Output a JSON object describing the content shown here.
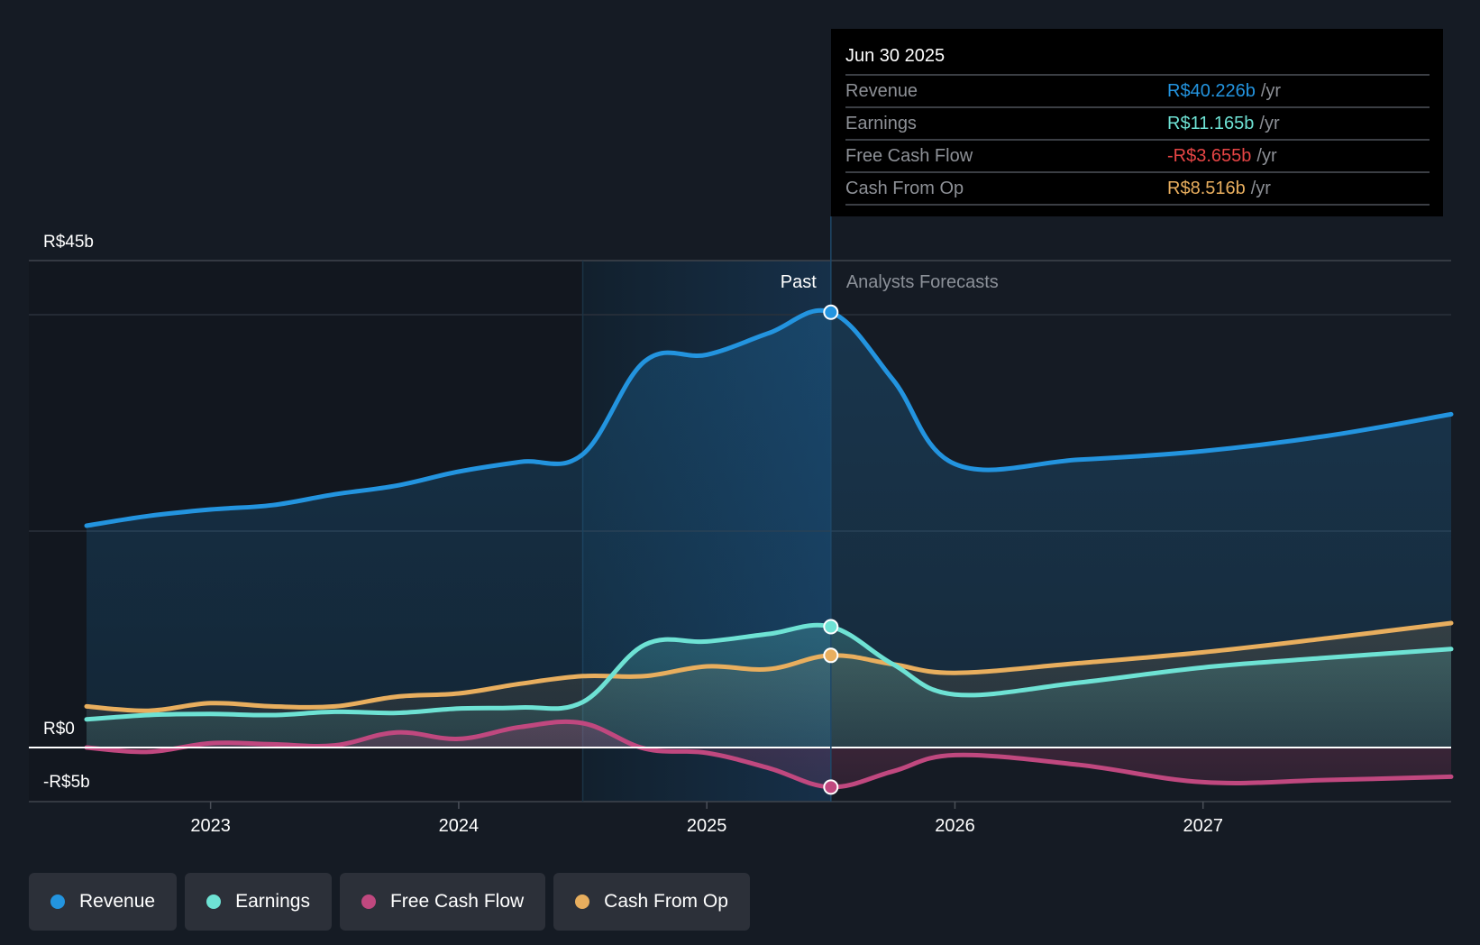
{
  "chart_data": {
    "type": "area",
    "title": "",
    "xlabel": "",
    "ylabel": "",
    "currency_prefix": "R$",
    "ylim": [
      -5,
      45
    ],
    "xlim": [
      2022.5,
      2028.0
    ],
    "y_ticks": [
      {
        "value": 45,
        "label": "R$45b"
      },
      {
        "value": 0,
        "label": "R$0"
      },
      {
        "value": -5,
        "label": "-R$5b"
      }
    ],
    "y_gridlines": [
      45,
      40,
      20,
      0,
      -5
    ],
    "x_ticks": [
      {
        "value": 2023,
        "label": "2023"
      },
      {
        "value": 2024,
        "label": "2024"
      },
      {
        "value": 2025,
        "label": "2025"
      },
      {
        "value": 2026,
        "label": "2026"
      },
      {
        "value": 2027,
        "label": "2027"
      }
    ],
    "past_region": {
      "start": 2022.5,
      "highlight_start": 2024.5,
      "end": 2025.5,
      "label": "Past"
    },
    "forecast_region": {
      "start": 2025.5,
      "label": "Analysts Forecasts"
    },
    "legend_position": "bottom-left",
    "series": [
      {
        "name": "Revenue",
        "color": "#2394df",
        "x": [
          2022.5,
          2022.75,
          2023.0,
          2023.25,
          2023.5,
          2023.75,
          2024.0,
          2024.25,
          2024.5,
          2024.75,
          2025.0,
          2025.25,
          2025.5,
          2025.75,
          2026.0,
          2026.5,
          2027.0,
          2027.5,
          2028.0
        ],
        "values": [
          20.5,
          21.4,
          22.0,
          22.4,
          23.4,
          24.2,
          25.5,
          26.4,
          27.1,
          35.7,
          36.3,
          38.3,
          40.226,
          34.0,
          26.2,
          26.6,
          27.4,
          28.8,
          30.8
        ]
      },
      {
        "name": "Earnings",
        "color": "#6ee2d4",
        "x": [
          2022.5,
          2022.75,
          2023.0,
          2023.25,
          2023.5,
          2023.75,
          2024.0,
          2024.25,
          2024.5,
          2024.75,
          2025.0,
          2025.25,
          2025.5,
          2025.75,
          2026.0,
          2026.5,
          2027.0,
          2027.5,
          2028.0
        ],
        "values": [
          2.6,
          3.0,
          3.1,
          3.0,
          3.3,
          3.2,
          3.6,
          3.7,
          4.2,
          9.5,
          9.8,
          10.5,
          11.165,
          7.7,
          4.9,
          6.0,
          7.4,
          8.3,
          9.1
        ]
      },
      {
        "name": "Free Cash Flow",
        "color": "#c0487f",
        "x": [
          2022.5,
          2022.75,
          2023.0,
          2023.25,
          2023.5,
          2023.75,
          2024.0,
          2024.25,
          2024.5,
          2024.75,
          2025.0,
          2025.25,
          2025.5,
          2025.75,
          2026.0,
          2026.5,
          2027.0,
          2027.5,
          2028.0
        ],
        "values": [
          0.0,
          -0.4,
          0.4,
          0.3,
          0.2,
          1.4,
          0.8,
          1.9,
          2.25,
          -0.1,
          -0.5,
          -1.9,
          -3.655,
          -2.2,
          -0.7,
          -1.6,
          -3.2,
          -3.0,
          -2.7
        ]
      },
      {
        "name": "Cash From Op",
        "color": "#e8ae5e",
        "x": [
          2022.5,
          2022.75,
          2023.0,
          2023.25,
          2023.5,
          2023.75,
          2024.0,
          2024.25,
          2024.5,
          2024.75,
          2025.0,
          2025.25,
          2025.5,
          2025.75,
          2026.0,
          2026.5,
          2027.0,
          2027.5,
          2028.0
        ],
        "values": [
          3.8,
          3.4,
          4.1,
          3.8,
          3.8,
          4.7,
          5.0,
          5.9,
          6.6,
          6.6,
          7.5,
          7.25,
          8.516,
          7.7,
          6.9,
          7.8,
          8.8,
          10.1,
          11.5
        ]
      }
    ],
    "highlight_x": 2025.5
  },
  "tooltip": {
    "date": "Jun 30 2025",
    "rows": [
      {
        "label": "Revenue",
        "value": "R$40.226b",
        "unit": "/yr",
        "color": "#2394df"
      },
      {
        "label": "Earnings",
        "value": "R$11.165b",
        "unit": "/yr",
        "color": "#6ee2d4"
      },
      {
        "label": "Free Cash Flow",
        "value": "-R$3.655b",
        "unit": "/yr",
        "color": "#e64545"
      },
      {
        "label": "Cash From Op",
        "value": "R$8.516b",
        "unit": "/yr",
        "color": "#e8ae5e"
      }
    ]
  },
  "legend": {
    "items": [
      {
        "label": "Revenue",
        "color": "#2394df"
      },
      {
        "label": "Earnings",
        "color": "#6ee2d4"
      },
      {
        "label": "Free Cash Flow",
        "color": "#c0487f"
      },
      {
        "label": "Cash From Op",
        "color": "#e8ae5e"
      }
    ]
  }
}
